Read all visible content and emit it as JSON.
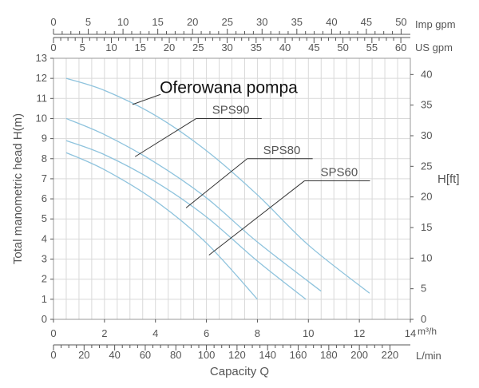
{
  "chart_data": {
    "type": "line",
    "title": "Oferowana pompa",
    "xlabel": "Capacity Q",
    "ylabel": "Total manometric head H(m)",
    "ylabel_right": "H[ft]",
    "x_unit_primary": "m³/h",
    "x_unit_lmin": "L/min",
    "top_axis_imp_label": "Imp gpm",
    "top_axis_us_label": "US gpm",
    "xlim": [
      0,
      14
    ],
    "ylim": [
      0,
      13
    ],
    "right_ylim_ft": [
      0,
      42.65
    ],
    "grid": true,
    "x_ticks_m3h": [
      0,
      2,
      4,
      6,
      8,
      10,
      12,
      14
    ],
    "y_ticks_m": [
      0,
      1,
      2,
      3,
      4,
      5,
      6,
      7,
      8,
      9,
      10,
      11,
      12,
      13
    ],
    "y_ticks_ft": [
      0,
      5,
      10,
      15,
      20,
      25,
      30,
      35,
      40
    ],
    "lmin_ticks": [
      0,
      20,
      40,
      60,
      80,
      100,
      120,
      140,
      160,
      180,
      200,
      220
    ],
    "imp_gpm_ticks": [
      0,
      5,
      10,
      15,
      20,
      25,
      30,
      35,
      40,
      45,
      50
    ],
    "us_gpm_ticks": [
      0,
      5,
      10,
      15,
      20,
      25,
      30,
      35,
      40,
      45,
      50,
      55,
      60
    ],
    "line_color": "#8ec3dd",
    "series": [
      {
        "x": [
          0.5,
          2,
          4,
          6,
          8,
          10,
          12.4
        ],
        "values": [
          12.0,
          11.4,
          10.15,
          8.4,
          6.2,
          3.7,
          1.3
        ]
      },
      {
        "x": [
          0.5,
          2,
          4,
          6,
          8,
          10.5
        ],
        "values": [
          10.0,
          9.2,
          7.8,
          6.05,
          3.85,
          1.4
        ]
      },
      {
        "x": [
          0.5,
          2,
          4,
          6,
          8,
          9.9
        ],
        "values": [
          8.9,
          8.2,
          6.85,
          5.1,
          2.9,
          1.0
        ]
      },
      {
        "x": [
          0.5,
          2,
          4,
          6,
          8
        ],
        "values": [
          8.3,
          7.45,
          5.9,
          3.8,
          1.0
        ]
      }
    ],
    "annotations": [
      {
        "text": "SPS90",
        "from": [
          3.2,
          8.1
        ],
        "to": [
          5.6,
          10.0
        ]
      },
      {
        "text": "SPS80",
        "from": [
          5.2,
          5.55
        ],
        "to": [
          7.6,
          8.0
        ]
      },
      {
        "text": "SPS60",
        "from": [
          6.1,
          3.2
        ],
        "to": [
          9.85,
          6.9
        ]
      },
      {
        "text": "Oferowana pompa",
        "from": [
          3.1,
          10.7
        ],
        "to": [
          4.2,
          11.2
        ]
      }
    ]
  }
}
